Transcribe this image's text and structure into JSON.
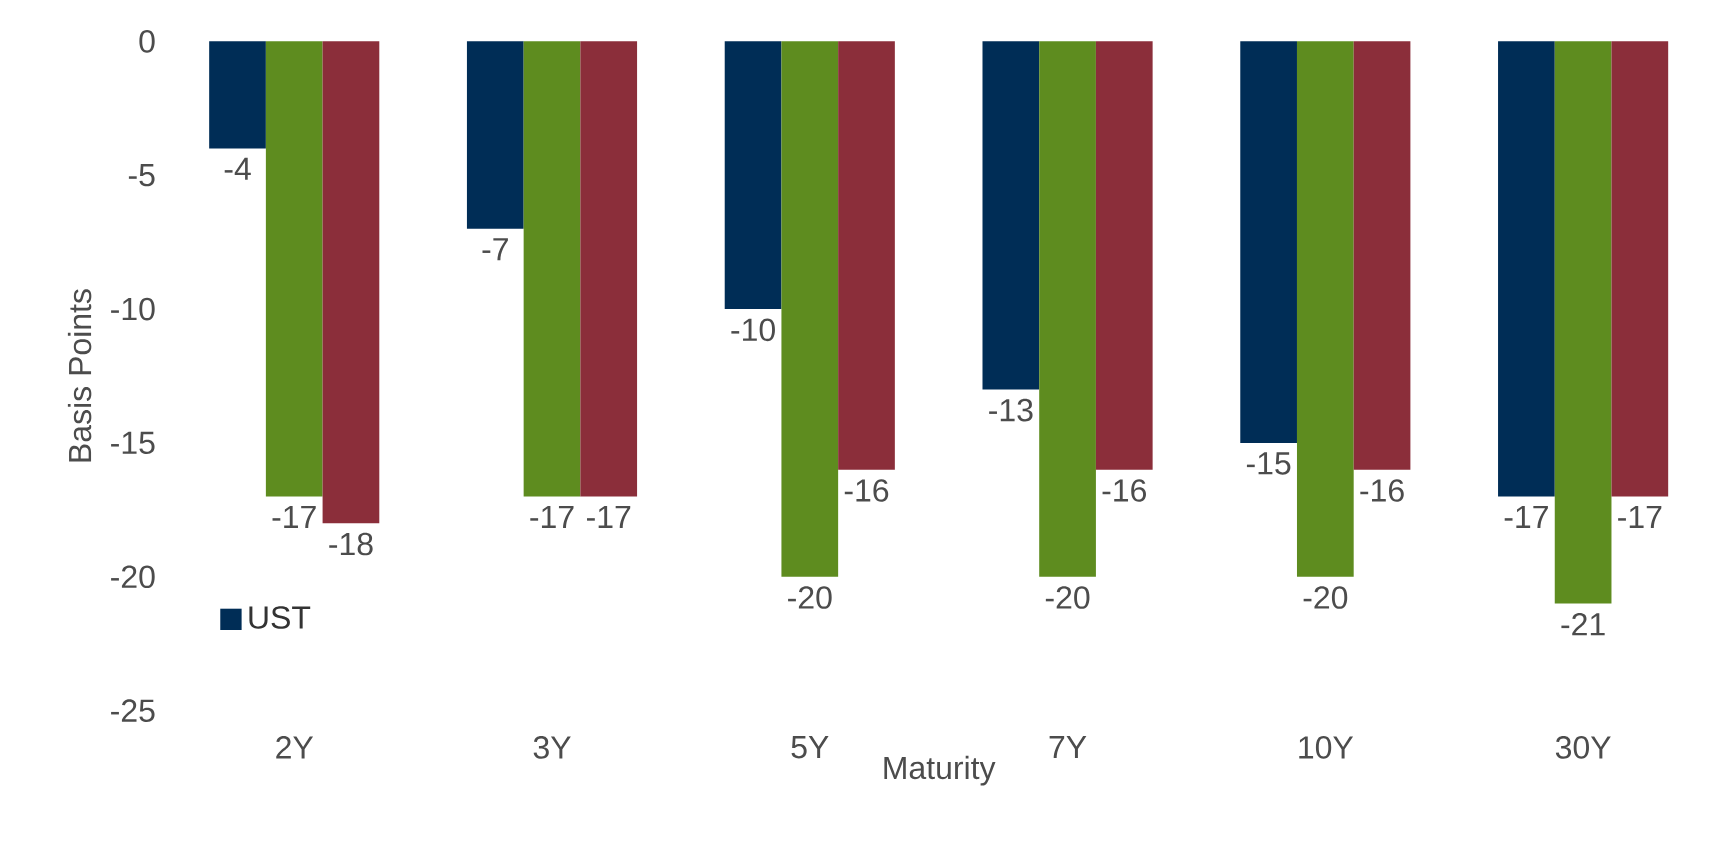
{
  "chart_data": {
    "type": "bar",
    "xlabel": "Maturity",
    "ylabel": "Basis Points",
    "categories": [
      "2Y",
      "3Y",
      "5Y",
      "7Y",
      "10Y",
      "30Y"
    ],
    "series": [
      {
        "name": "UST",
        "color": "#002d56",
        "values": [
          -4,
          -7,
          -10,
          -13,
          -15,
          -17
        ]
      },
      {
        "color": "#5e8c1f",
        "values": [
          -17,
          -17,
          -20,
          -20,
          -20,
          -21
        ]
      },
      {
        "color": "#8b2e3a",
        "values": [
          -18,
          -17,
          -16,
          -16,
          -16,
          -17
        ]
      }
    ],
    "ylim": [
      -25,
      0
    ],
    "yticks": [
      -25,
      -20,
      -15,
      -10,
      -5,
      0
    ],
    "data_labels": true,
    "grid": false,
    "legend": "bottom left"
  }
}
